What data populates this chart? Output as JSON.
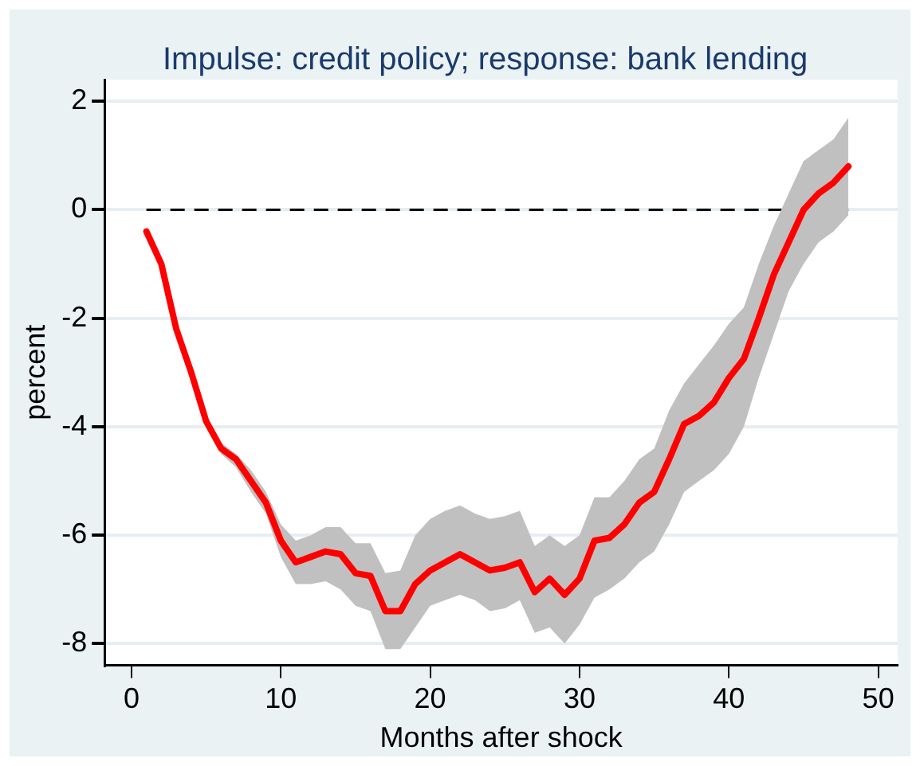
{
  "chart_data": {
    "type": "line",
    "title": "Impulse: credit policy; response: bank lending",
    "xlabel": "Months after shock",
    "ylabel": "percent",
    "x": [
      1,
      2,
      3,
      4,
      5,
      6,
      7,
      8,
      9,
      10,
      11,
      12,
      13,
      14,
      15,
      16,
      17,
      18,
      19,
      20,
      21,
      22,
      23,
      24,
      25,
      26,
      27,
      28,
      29,
      30,
      31,
      32,
      33,
      34,
      35,
      36,
      37,
      38,
      39,
      40,
      41,
      42,
      43,
      44,
      45,
      46,
      47,
      48
    ],
    "series": [
      {
        "color": "#ff0000",
        "values": [
          -0.4,
          -1.0,
          -2.2,
          -3.0,
          -3.9,
          -4.4,
          -4.6,
          -5.0,
          -5.4,
          -6.1,
          -6.5,
          -6.4,
          -6.3,
          -6.35,
          -6.7,
          -6.75,
          -7.4,
          -7.4,
          -6.9,
          -6.65,
          -6.5,
          -6.35,
          -6.5,
          -6.65,
          -6.6,
          -6.5,
          -7.05,
          -6.8,
          -7.1,
          -6.8,
          -6.1,
          -6.05,
          -5.8,
          -5.4,
          -5.2,
          -4.6,
          -3.95,
          -3.8,
          -3.55,
          -3.1,
          -2.75,
          -2.0,
          -1.2,
          -0.6,
          0.0,
          0.3,
          0.5,
          0.8
        ],
        "lower": [
          -0.4,
          -1.0,
          -2.2,
          -3.0,
          -3.9,
          -4.5,
          -4.75,
          -5.2,
          -5.6,
          -6.4,
          -6.9,
          -6.9,
          -6.85,
          -7.0,
          -7.3,
          -7.4,
          -8.1,
          -8.1,
          -7.7,
          -7.3,
          -7.2,
          -7.1,
          -7.2,
          -7.4,
          -7.35,
          -7.2,
          -7.8,
          -7.7,
          -8.0,
          -7.65,
          -7.15,
          -7.0,
          -6.8,
          -6.5,
          -6.3,
          -5.8,
          -5.2,
          -5.0,
          -4.8,
          -4.5,
          -4.0,
          -3.1,
          -2.3,
          -1.5,
          -1.0,
          -0.6,
          -0.4,
          -0.1
        ],
        "upper": [
          -0.4,
          -1.0,
          -2.2,
          -3.0,
          -3.9,
          -4.3,
          -4.5,
          -4.8,
          -5.2,
          -5.8,
          -6.1,
          -6.0,
          -5.85,
          -5.85,
          -6.15,
          -6.15,
          -6.7,
          -6.65,
          -6.0,
          -5.7,
          -5.55,
          -5.45,
          -5.6,
          -5.7,
          -5.65,
          -5.55,
          -6.2,
          -6.0,
          -6.2,
          -6.0,
          -5.3,
          -5.3,
          -5.0,
          -4.6,
          -4.4,
          -3.7,
          -3.2,
          -2.85,
          -2.5,
          -2.1,
          -1.8,
          -1.0,
          -0.3,
          0.3,
          0.9,
          1.1,
          1.3,
          1.7
        ]
      }
    ],
    "xlim": [
      -1.8,
      51.3
    ],
    "xticks": [
      0,
      10,
      20,
      30,
      40,
      50
    ],
    "ylim": [
      -8.4,
      2.4
    ],
    "yticks": [
      -8,
      -6,
      -4,
      -2,
      0,
      2
    ],
    "ref_lines": [
      {
        "axis": "y",
        "value": 0,
        "color": "#000000",
        "line_style": "dashed"
      }
    ],
    "grid": "y",
    "legend": false,
    "marker": "none",
    "line_style": "solid"
  }
}
